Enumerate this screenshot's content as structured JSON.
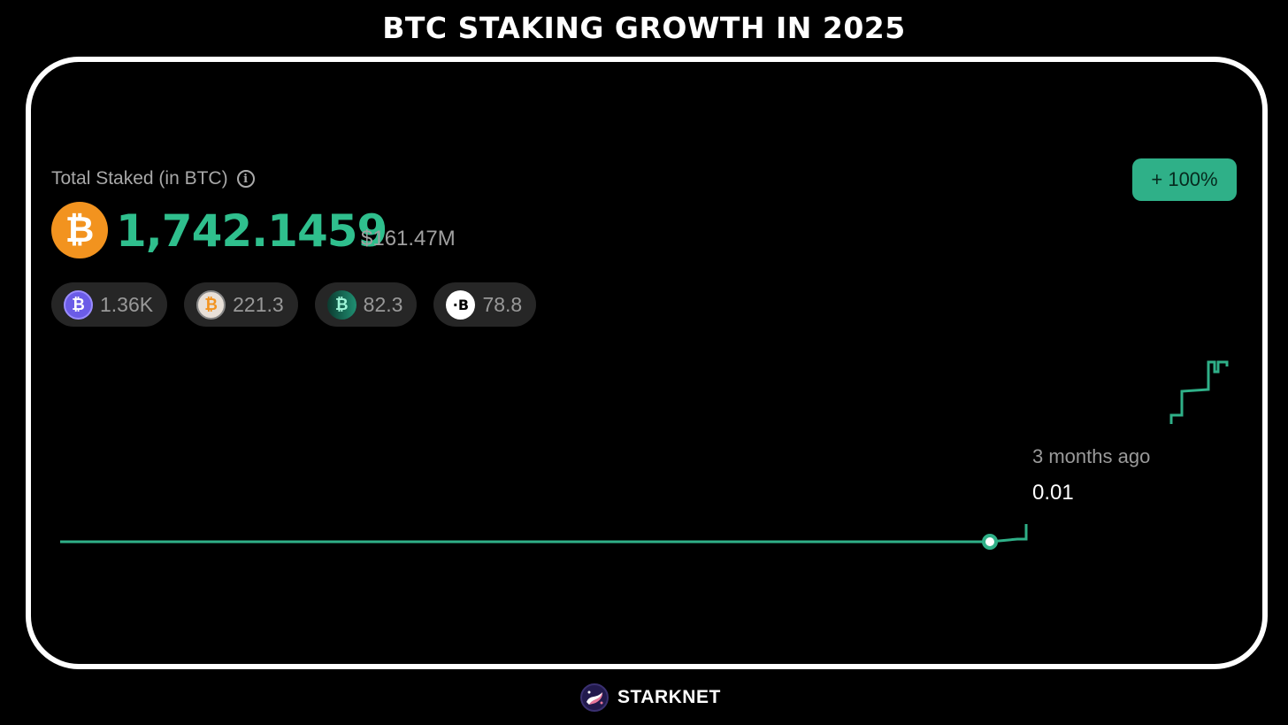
{
  "header": {
    "title": "BTC STAKING GROWTH IN 2025"
  },
  "summary": {
    "label": "Total Staked (in BTC)",
    "info_icon": "info-icon",
    "total_btc": "1,742.1459",
    "total_usd": "$161.47M",
    "change": "+ 100%",
    "accent_color": "#2fbf8d"
  },
  "tokens": [
    {
      "value": "1.36K",
      "icon": "purple-btc-icon",
      "color": "#6b5ce7"
    },
    {
      "value": "221.3",
      "icon": "orange-btc-icon",
      "color": "#e8e0d8"
    },
    {
      "value": "82.3",
      "icon": "teal-btc-icon",
      "color": "#1f8f72"
    },
    {
      "value": "78.8",
      "icon": "white-btc-icon",
      "color": "#ffffff"
    }
  ],
  "tooltip": {
    "time": "3 months ago",
    "value": "0.01"
  },
  "footer": {
    "brand": "STARKNET"
  }
}
